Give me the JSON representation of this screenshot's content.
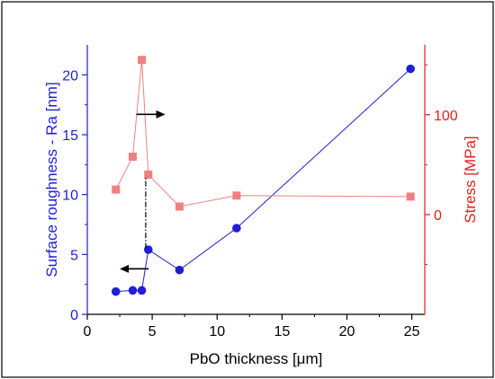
{
  "chart_data": {
    "type": "scatter",
    "xlabel": "PbO thickness [μm]",
    "ylabel_left": "Surface roughness - Ra [nm]",
    "ylabel_right": "Stress [MPa]",
    "xlim": [
      0,
      26
    ],
    "ylim_left": [
      0,
      22.5
    ],
    "ylim_right": [
      -100,
      170
    ],
    "x_ticks": [
      0,
      5,
      10,
      15,
      20,
      25
    ],
    "y_ticks_left": [
      0,
      5,
      10,
      15,
      20
    ],
    "y_ticks_right": [
      0,
      100
    ],
    "grid": false,
    "series": [
      {
        "axis": "left",
        "color": "#1f1fd6",
        "marker": "circle",
        "x": [
          2.2,
          3.5,
          4.2,
          4.7,
          7.1,
          11.5,
          24.9
        ],
        "y": [
          1.9,
          2.0,
          2.0,
          5.4,
          3.7,
          7.2,
          20.5
        ]
      },
      {
        "axis": "right",
        "color": "#f08080",
        "marker": "square",
        "x": [
          2.2,
          3.5,
          4.2,
          4.7,
          7.1,
          11.5,
          24.9
        ],
        "y": [
          25,
          58,
          155,
          40,
          8,
          19,
          18
        ]
      }
    ],
    "annotations": [
      {
        "type": "arrow",
        "direction": "left",
        "points_to": "left axis",
        "at": [
          2.5,
          3.8
        ]
      },
      {
        "type": "arrow",
        "direction": "right",
        "points_to": "right axis",
        "at": [
          6,
          16.7
        ]
      },
      {
        "type": "dash-dot line",
        "x": 4.5,
        "from_y": 5.5,
        "to_y": 11.5
      }
    ],
    "colors": {
      "left_axis": "#1f1fd6",
      "right_axis": "#e81c1c"
    }
  }
}
